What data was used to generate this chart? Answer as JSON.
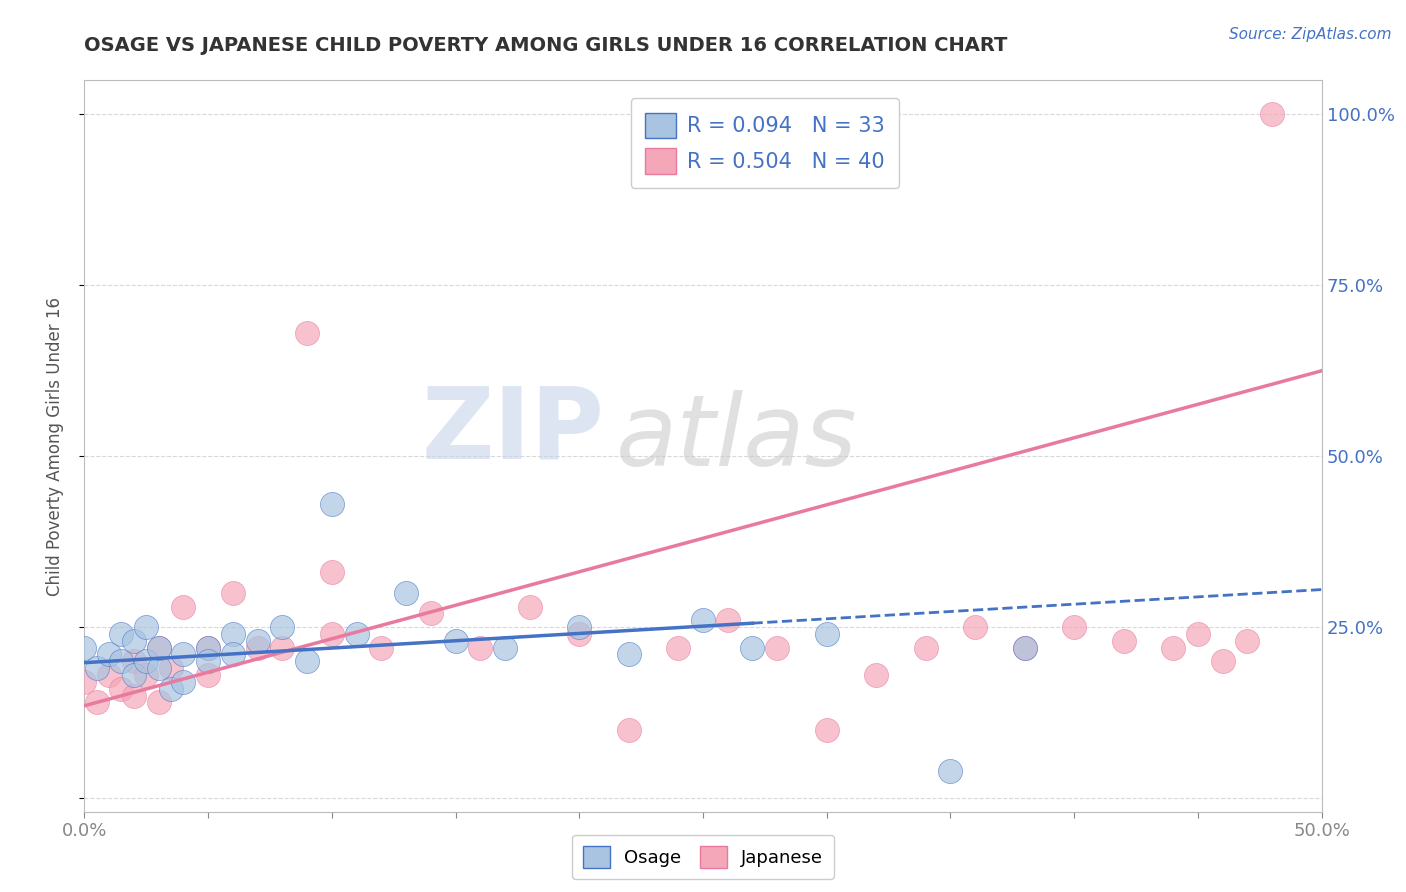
{
  "title": "OSAGE VS JAPANESE CHILD POVERTY AMONG GIRLS UNDER 16 CORRELATION CHART",
  "source": "Source: ZipAtlas.com",
  "ylabel": "Child Poverty Among Girls Under 16",
  "xlim": [
    0.0,
    0.5
  ],
  "ylim": [
    -0.02,
    1.05
  ],
  "osage_color": "#a8c4e0",
  "japanese_color": "#f4a7b9",
  "osage_line_color": "#4472c4",
  "japanese_line_color": "#e87aa0",
  "osage_scatter_x": [
    0.0,
    0.005,
    0.01,
    0.015,
    0.015,
    0.02,
    0.02,
    0.025,
    0.025,
    0.03,
    0.03,
    0.035,
    0.04,
    0.04,
    0.05,
    0.05,
    0.06,
    0.06,
    0.07,
    0.08,
    0.09,
    0.1,
    0.11,
    0.13,
    0.15,
    0.17,
    0.2,
    0.22,
    0.25,
    0.27,
    0.3,
    0.35,
    0.38
  ],
  "osage_scatter_y": [
    0.22,
    0.19,
    0.21,
    0.2,
    0.24,
    0.18,
    0.23,
    0.2,
    0.25,
    0.19,
    0.22,
    0.16,
    0.21,
    0.17,
    0.22,
    0.2,
    0.24,
    0.21,
    0.23,
    0.25,
    0.2,
    0.43,
    0.24,
    0.3,
    0.23,
    0.22,
    0.25,
    0.21,
    0.26,
    0.22,
    0.24,
    0.04,
    0.22
  ],
  "japanese_scatter_x": [
    0.0,
    0.005,
    0.01,
    0.015,
    0.02,
    0.02,
    0.025,
    0.03,
    0.03,
    0.035,
    0.04,
    0.05,
    0.05,
    0.06,
    0.07,
    0.08,
    0.09,
    0.1,
    0.1,
    0.12,
    0.14,
    0.16,
    0.18,
    0.2,
    0.22,
    0.24,
    0.26,
    0.28,
    0.3,
    0.32,
    0.34,
    0.36,
    0.38,
    0.4,
    0.42,
    0.44,
    0.45,
    0.46,
    0.47,
    0.48
  ],
  "japanese_scatter_y": [
    0.17,
    0.14,
    0.18,
    0.16,
    0.15,
    0.2,
    0.18,
    0.14,
    0.22,
    0.19,
    0.28,
    0.18,
    0.22,
    0.3,
    0.22,
    0.22,
    0.68,
    0.24,
    0.33,
    0.22,
    0.27,
    0.22,
    0.28,
    0.24,
    0.1,
    0.22,
    0.26,
    0.22,
    0.1,
    0.18,
    0.22,
    0.25,
    0.22,
    0.25,
    0.23,
    0.22,
    0.24,
    0.2,
    0.23,
    1.0
  ],
  "osage_trend_x": [
    0.0,
    0.5
  ],
  "osage_trend_y": [
    0.198,
    0.305
  ],
  "japanese_trend_x": [
    0.0,
    0.5
  ],
  "japanese_trend_y": [
    0.135,
    0.625
  ],
  "background_color": "#ffffff",
  "grid_color": "#d8d8d8"
}
